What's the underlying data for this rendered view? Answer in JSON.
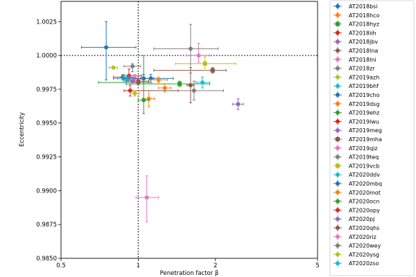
{
  "chart_data": {
    "type": "scatter",
    "xlabel": "Penetration factor β",
    "ylabel": "Eccentricity",
    "x_scale": "log",
    "xlim": [
      0.5,
      5
    ],
    "ylim": [
      0.985,
      1.004
    ],
    "x_ticks": [
      {
        "value": 0.5,
        "label": "0.5"
      },
      {
        "value": 1,
        "label": "1"
      },
      {
        "value": 2,
        "label": "2"
      },
      {
        "value": 5,
        "label": "5"
      }
    ],
    "y_ticks": [
      {
        "value": 0.985,
        "label": "0.9850"
      },
      {
        "value": 0.9875,
        "label": "0.9875"
      },
      {
        "value": 0.99,
        "label": "0.9900"
      },
      {
        "value": 0.9925,
        "label": "0.9925"
      },
      {
        "value": 0.995,
        "label": "0.9950"
      },
      {
        "value": 0.9975,
        "label": "0.9975"
      },
      {
        "value": 1.0,
        "label": "1.0000"
      },
      {
        "value": 1.0025,
        "label": "1.0025"
      }
    ],
    "reference_lines": {
      "x": 1,
      "y": 1.0,
      "style": "dotted"
    },
    "legend_position": "outside-right",
    "series": [
      {
        "name": "AT2018bsi",
        "color": "#1f77b4",
        "marker": "o",
        "x": 0.75,
        "xerr": [
          0.15,
          0.23
        ],
        "y": 1.0006,
        "yerr": [
          0.0024,
          0.0019
        ]
      },
      {
        "name": "AT2018hco",
        "color": "#ff7f0e",
        "marker": "o",
        "x": 1.27,
        "xerr": [
          0.07,
          0.07
        ],
        "y": 0.9976,
        "yerr": [
          0.0003,
          0.0003
        ]
      },
      {
        "name": "AT2018hyz",
        "color": "#2ca02c",
        "marker": "s",
        "x": 1.45,
        "xerr": [
          0.55,
          0.45
        ],
        "y": 0.9979,
        "yerr": [
          0.0002,
          0.0002
        ]
      },
      {
        "name": "AT2018iih",
        "color": "#d62728",
        "marker": "o",
        "x": 0.92,
        "xerr": [
          0.05,
          0.11
        ],
        "y": 0.9985,
        "yerr": [
          0.0003,
          0.0005
        ]
      },
      {
        "name": "AT2018jbv",
        "color": "#9467bd",
        "marker": "o",
        "x": 0.92,
        "xerr": [
          0.12,
          0.1
        ],
        "y": 0.9983,
        "yerr": [
          0.0002,
          0.0002
        ]
      },
      {
        "name": "AT2018lna",
        "color": "#8c564b",
        "marker": "o",
        "x": 0.87,
        "xerr": [
          0.07,
          0.1
        ],
        "y": 0.9984,
        "yerr": [
          0.0002,
          0.0002
        ]
      },
      {
        "name": "AT2018lni",
        "color": "#e377c2",
        "marker": "o",
        "x": 0.97,
        "xerr": [
          0.07,
          0.06
        ],
        "y": 0.9983,
        "yerr": [
          0.0003,
          0.0003
        ]
      },
      {
        "name": "AT2018zr",
        "color": "#7f7f7f",
        "marker": "o",
        "x": 0.95,
        "xerr": [
          0.07,
          0.07
        ],
        "y": 0.9992,
        "yerr": [
          0.0004,
          0.0002
        ]
      },
      {
        "name": "AT2019azh",
        "color": "#bcbd22",
        "marker": "o",
        "x": 0.8,
        "xerr": [
          0.03,
          0.03
        ],
        "y": 0.9991,
        "yerr": [
          0.0001,
          0.0001
        ]
      },
      {
        "name": "AT2019bhf",
        "color": "#17becf",
        "marker": "o",
        "x": 0.88,
        "xerr": [
          0.05,
          0.05
        ],
        "y": 0.9983,
        "yerr": [
          0.0003,
          0.0003
        ]
      },
      {
        "name": "AT2019cho",
        "color": "#1f77b4",
        "marker": "o",
        "x": 1.05,
        "xerr": [
          0.1,
          0.1
        ],
        "y": 0.9983,
        "yerr": [
          0.0003,
          0.0003
        ]
      },
      {
        "name": "AT2019dsg",
        "color": "#ff7f0e",
        "marker": "o",
        "x": 1.1,
        "xerr": [
          0.06,
          0.06
        ],
        "y": 0.9968,
        "yerr": [
          0.0006,
          0.0006
        ]
      },
      {
        "name": "AT2019ehz",
        "color": "#2ca02c",
        "marker": "o",
        "x": 1.05,
        "xerr": [
          0.05,
          0.05
        ],
        "y": 0.9967,
        "yerr": [
          0.001,
          0.0033
        ]
      },
      {
        "name": "AT2019lwu",
        "color": "#d62728",
        "marker": "o",
        "x": 0.93,
        "xerr": [
          0.05,
          0.5
        ],
        "y": 0.9974,
        "yerr": [
          0.0004,
          0.0004
        ]
      },
      {
        "name": "AT2019meg",
        "color": "#9467bd",
        "marker": "o",
        "x": 2.45,
        "xerr": [
          0.12,
          0.12
        ],
        "y": 0.9964,
        "yerr": [
          0.0004,
          0.0004
        ]
      },
      {
        "name": "AT2019mha",
        "color": "#8c564b",
        "marker": "s",
        "x": 1.95,
        "xerr": [
          0.8,
          0.25
        ],
        "y": 0.9989,
        "yerr": [
          0.0002,
          0.0002
        ]
      },
      {
        "name": "AT2019qiz",
        "color": "#e377c2",
        "marker": "o",
        "x": 1.72,
        "xerr": [
          0.18,
          0.18
        ],
        "y": 1.0,
        "yerr": [
          0.0005,
          0.0009
        ]
      },
      {
        "name": "AT2019teq",
        "color": "#7f7f7f",
        "marker": "o",
        "x": 1.65,
        "xerr": [
          0.6,
          0.5
        ],
        "y": 0.9974,
        "yerr": [
          0.0007,
          0.0007
        ]
      },
      {
        "name": "AT2019vcb",
        "color": "#bcbd22",
        "marker": "s",
        "x": 1.82,
        "xerr": [
          0.42,
          0.58
        ],
        "y": 0.9994,
        "yerr": [
          0.0005,
          0.0005
        ]
      },
      {
        "name": "AT2020ddv",
        "color": "#17becf",
        "marker": "o",
        "x": 0.9,
        "xerr": [
          0.03,
          0.06
        ],
        "y": 0.9982,
        "yerr": [
          0.0003,
          0.0003
        ]
      },
      {
        "name": "AT2020mbq",
        "color": "#1f77b4",
        "marker": "o",
        "x": 1.12,
        "xerr": [
          0.25,
          0.25
        ],
        "y": 0.9983,
        "yerr": [
          0.0003,
          0.0003
        ]
      },
      {
        "name": "AT2020mot",
        "color": "#ff7f0e",
        "marker": "o",
        "x": 1.2,
        "xerr": [
          0.1,
          0.1
        ],
        "y": 0.9982,
        "yerr": [
          0.0002,
          0.0002
        ]
      },
      {
        "name": "AT2020ocn",
        "color": "#2ca02c",
        "marker": "o",
        "x": 1.0,
        "xerr": [
          0.3,
          0.1
        ],
        "y": 0.998,
        "yerr": [
          0.0002,
          0.0002
        ]
      },
      {
        "name": "AT2020opy",
        "color": "#d62728",
        "marker": "o",
        "x": 1.0,
        "xerr": [
          0.1,
          0.1
        ],
        "y": 0.9981,
        "yerr": [
          0.0002,
          0.0002
        ]
      },
      {
        "name": "AT2020pj",
        "color": "#9467bd",
        "marker": "o",
        "x": 0.95,
        "xerr": [
          0.05,
          0.05
        ],
        "y": 0.9981,
        "yerr": [
          0.0002,
          0.0002
        ]
      },
      {
        "name": "AT2020qhs",
        "color": "#8c564b",
        "marker": "o",
        "x": 1.6,
        "xerr": [
          0.05,
          0.05
        ],
        "y": 0.9978,
        "yerr": [
          0.0013,
          0.0013
        ]
      },
      {
        "name": "AT2020riz",
        "color": "#e377c2",
        "marker": "o",
        "x": 1.08,
        "xerr": [
          0.1,
          0.12
        ],
        "y": 0.9895,
        "yerr": [
          0.0018,
          0.0016
        ]
      },
      {
        "name": "AT2020wey",
        "color": "#7f7f7f",
        "marker": "o",
        "x": 1.6,
        "xerr": [
          0.45,
          0.45
        ],
        "y": 1.0005,
        "yerr": [
          0.0018,
          0.0018
        ]
      },
      {
        "name": "AT2020ysg",
        "color": "#bcbd22",
        "marker": "o",
        "x": 0.97,
        "xerr": [
          0.04,
          0.04
        ],
        "y": 0.9972,
        "yerr": [
          0.0002,
          0.0002
        ]
      },
      {
        "name": "AT2020zso",
        "color": "#17becf",
        "marker": "o",
        "x": 1.78,
        "xerr": [
          0.1,
          0.12
        ],
        "y": 0.998,
        "yerr": [
          0.0004,
          0.0004
        ]
      }
    ]
  }
}
